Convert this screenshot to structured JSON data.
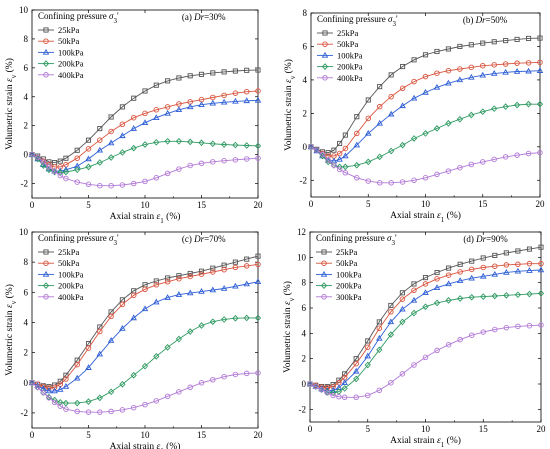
{
  "figure": {
    "series_colors": [
      "#555555",
      "#d9543f",
      "#2f5fd6",
      "#2f9a62",
      "#b27ad6"
    ],
    "marker_shapes": [
      "square",
      "circle",
      "triangle",
      "diamond",
      "circle"
    ],
    "x_ticks": [
      "0",
      "5",
      "10",
      "15",
      "20"
    ]
  },
  "chart_data": [
    {
      "type": "line",
      "panel_label": "(a) Dr=30%",
      "legend_title": "Confining pressure σ3'",
      "xlabel": "Axial strain ε1 (%)",
      "ylabel": "Volumetric strain εv (%)",
      "xlim": [
        0,
        20
      ],
      "ylim": [
        -3,
        10
      ],
      "y_ticks": [
        "-2",
        "0",
        "2",
        "4",
        "6",
        "8",
        "10"
      ],
      "grid": false,
      "legend_position": "top-left",
      "x": [
        0,
        0.5,
        1,
        1.5,
        2,
        2.5,
        3,
        4,
        5,
        6,
        7,
        8,
        9,
        10,
        11,
        12,
        13,
        14,
        15,
        16,
        17,
        18,
        19,
        20
      ],
      "series": [
        {
          "name": "25kPa",
          "values": [
            0,
            -0.1,
            -0.3,
            -0.5,
            -0.55,
            -0.45,
            -0.25,
            0.3,
            1.0,
            1.8,
            2.6,
            3.3,
            3.9,
            4.4,
            4.8,
            5.1,
            5.3,
            5.45,
            5.55,
            5.65,
            5.72,
            5.78,
            5.83,
            5.85
          ]
        },
        {
          "name": "50kPa",
          "values": [
            0,
            -0.2,
            -0.45,
            -0.7,
            -0.85,
            -0.85,
            -0.7,
            -0.25,
            0.4,
            1.0,
            1.6,
            2.1,
            2.55,
            2.85,
            3.1,
            3.3,
            3.5,
            3.65,
            3.8,
            3.95,
            4.1,
            4.25,
            4.35,
            4.4
          ]
        },
        {
          "name": "100kPa",
          "values": [
            0,
            -0.3,
            -0.7,
            -1.0,
            -1.15,
            -1.15,
            -1.05,
            -0.8,
            -0.3,
            0.3,
            0.8,
            1.3,
            1.8,
            2.2,
            2.55,
            2.85,
            3.1,
            3.3,
            3.45,
            3.55,
            3.62,
            3.68,
            3.72,
            3.75
          ]
        },
        {
          "name": "200kPa",
          "values": [
            0,
            -0.3,
            -0.75,
            -1.05,
            -1.2,
            -1.25,
            -1.2,
            -1.05,
            -0.85,
            -0.55,
            -0.2,
            0.15,
            0.45,
            0.7,
            0.85,
            0.92,
            0.92,
            0.88,
            0.82,
            0.75,
            0.7,
            0.66,
            0.63,
            0.6
          ]
        },
        {
          "name": "400kPa",
          "values": [
            0,
            -0.2,
            -0.5,
            -0.85,
            -1.15,
            -1.45,
            -1.65,
            -1.9,
            -2.05,
            -2.15,
            -2.15,
            -2.1,
            -2.0,
            -1.85,
            -1.6,
            -1.3,
            -1.0,
            -0.75,
            -0.6,
            -0.5,
            -0.42,
            -0.36,
            -0.3,
            -0.25
          ]
        }
      ]
    },
    {
      "type": "line",
      "panel_label": "(b) Dr=50%",
      "legend_title": "Confining pressure σ3'",
      "xlabel": "Axial strain ε1 (%)",
      "ylabel": "Volumetric strain εv (%)",
      "xlim": [
        0,
        20
      ],
      "ylim": [
        -3,
        8
      ],
      "y_ticks": [
        "-2",
        "0",
        "2",
        "4",
        "6",
        "8"
      ],
      "grid": false,
      "legend_position": "top-left",
      "x": [
        0,
        0.5,
        1,
        1.5,
        2,
        2.5,
        3,
        4,
        5,
        6,
        7,
        8,
        9,
        10,
        11,
        12,
        13,
        14,
        15,
        16,
        17,
        18,
        19,
        20
      ],
      "series": [
        {
          "name": "25kPa",
          "values": [
            0,
            -0.15,
            -0.3,
            -0.35,
            -0.2,
            0.2,
            0.7,
            1.8,
            2.8,
            3.6,
            4.3,
            4.8,
            5.2,
            5.5,
            5.7,
            5.85,
            6.0,
            6.1,
            6.2,
            6.28,
            6.35,
            6.42,
            6.48,
            6.5
          ]
        },
        {
          "name": "50kPa",
          "values": [
            0,
            -0.2,
            -0.4,
            -0.55,
            -0.55,
            -0.4,
            -0.1,
            0.8,
            1.7,
            2.4,
            3.0,
            3.5,
            3.9,
            4.2,
            4.4,
            4.55,
            4.65,
            4.75,
            4.85,
            4.9,
            4.95,
            5.0,
            5.02,
            5.05
          ]
        },
        {
          "name": "100kPa",
          "values": [
            0,
            -0.25,
            -0.55,
            -0.8,
            -0.85,
            -0.75,
            -0.55,
            0.1,
            0.8,
            1.4,
            1.95,
            2.45,
            2.9,
            3.25,
            3.55,
            3.8,
            4.0,
            4.15,
            4.28,
            4.38,
            4.45,
            4.5,
            4.52,
            4.55
          ]
        },
        {
          "name": "200kPa",
          "values": [
            0,
            -0.2,
            -0.55,
            -0.9,
            -1.1,
            -1.2,
            -1.2,
            -1.1,
            -0.9,
            -0.6,
            -0.25,
            0.1,
            0.5,
            0.8,
            1.1,
            1.4,
            1.65,
            1.9,
            2.1,
            2.28,
            2.4,
            2.5,
            2.55,
            2.55
          ]
        },
        {
          "name": "400kPa",
          "values": [
            0,
            -0.2,
            -0.45,
            -0.8,
            -1.1,
            -1.35,
            -1.55,
            -1.85,
            -2.05,
            -2.15,
            -2.15,
            -2.1,
            -2.0,
            -1.85,
            -1.65,
            -1.45,
            -1.25,
            -1.05,
            -0.9,
            -0.75,
            -0.6,
            -0.5,
            -0.4,
            -0.35
          ]
        }
      ]
    },
    {
      "type": "line",
      "panel_label": "(c) Dr=70%",
      "legend_title": "Confining pressure σ3'",
      "xlabel": "Axial strain ε1 (%)",
      "ylabel": "Volumetric strain εv (%)",
      "xlim": [
        0,
        20
      ],
      "ylim": [
        -3,
        10
      ],
      "y_ticks": [
        "-2",
        "0",
        "2",
        "4",
        "6",
        "8",
        "10"
      ],
      "grid": false,
      "legend_position": "top-left",
      "x": [
        0,
        0.5,
        1,
        1.5,
        2,
        2.5,
        3,
        4,
        5,
        6,
        7,
        8,
        9,
        10,
        11,
        12,
        13,
        14,
        15,
        16,
        17,
        18,
        19,
        20
      ],
      "series": [
        {
          "name": "25kPa",
          "values": [
            0,
            -0.1,
            -0.2,
            -0.25,
            -0.15,
            0.1,
            0.5,
            1.5,
            2.6,
            3.7,
            4.7,
            5.5,
            6.1,
            6.5,
            6.75,
            6.95,
            7.1,
            7.25,
            7.4,
            7.6,
            7.8,
            8.0,
            8.2,
            8.4
          ]
        },
        {
          "name": "50kPa",
          "values": [
            0,
            -0.1,
            -0.25,
            -0.35,
            -0.3,
            -0.1,
            0.25,
            1.2,
            2.3,
            3.4,
            4.4,
            5.2,
            5.8,
            6.2,
            6.5,
            6.7,
            6.9,
            7.05,
            7.2,
            7.35,
            7.5,
            7.65,
            7.75,
            7.85
          ]
        },
        {
          "name": "100kPa",
          "values": [
            0,
            -0.2,
            -0.4,
            -0.55,
            -0.55,
            -0.45,
            -0.25,
            0.3,
            1.0,
            1.9,
            2.8,
            3.6,
            4.3,
            4.9,
            5.35,
            5.65,
            5.85,
            5.95,
            6.05,
            6.15,
            6.25,
            6.4,
            6.55,
            6.7
          ]
        },
        {
          "name": "200kPa",
          "values": [
            0,
            -0.3,
            -0.65,
            -0.95,
            -1.15,
            -1.3,
            -1.35,
            -1.35,
            -1.25,
            -1.0,
            -0.6,
            -0.1,
            0.5,
            1.1,
            1.75,
            2.35,
            2.9,
            3.4,
            3.8,
            4.05,
            4.2,
            4.28,
            4.3,
            4.3
          ]
        },
        {
          "name": "400kPa",
          "values": [
            0,
            -0.3,
            -0.65,
            -1.0,
            -1.3,
            -1.55,
            -1.75,
            -1.9,
            -1.95,
            -1.95,
            -1.9,
            -1.8,
            -1.65,
            -1.45,
            -1.2,
            -0.9,
            -0.6,
            -0.3,
            0.0,
            0.2,
            0.4,
            0.55,
            0.62,
            0.65
          ]
        }
      ]
    },
    {
      "type": "line",
      "panel_label": "(d) Dr=90%",
      "legend_title": "Confining pressure σ3'",
      "xlabel": "Axial strain ε1 (%)",
      "ylabel": "Volumetric strain εv (%)",
      "xlim": [
        0,
        20
      ],
      "ylim": [
        -3,
        12
      ],
      "y_ticks": [
        "-2",
        "0",
        "2",
        "4",
        "6",
        "8",
        "10",
        "12"
      ],
      "grid": false,
      "legend_position": "top-left",
      "x": [
        0,
        0.5,
        1,
        1.5,
        2,
        2.5,
        3,
        4,
        5,
        6,
        7,
        8,
        9,
        10,
        11,
        12,
        13,
        14,
        15,
        16,
        17,
        18,
        19,
        20
      ],
      "series": [
        {
          "name": "25kPa",
          "values": [
            0,
            -0.1,
            -0.2,
            -0.2,
            -0.05,
            0.3,
            0.8,
            2.0,
            3.4,
            4.9,
            6.2,
            7.2,
            7.9,
            8.4,
            8.8,
            9.15,
            9.45,
            9.7,
            9.95,
            10.15,
            10.35,
            10.5,
            10.65,
            10.8
          ]
        },
        {
          "name": "50kPa",
          "values": [
            0,
            -0.1,
            -0.25,
            -0.3,
            -0.2,
            0.1,
            0.5,
            1.6,
            2.9,
            4.4,
            5.7,
            6.7,
            7.4,
            7.9,
            8.3,
            8.6,
            8.85,
            9.05,
            9.2,
            9.3,
            9.4,
            9.45,
            9.5,
            9.5
          ]
        },
        {
          "name": "100kPa",
          "values": [
            0,
            -0.2,
            -0.4,
            -0.55,
            -0.5,
            -0.3,
            0.1,
            1.0,
            2.2,
            3.6,
            4.9,
            5.9,
            6.6,
            7.2,
            7.6,
            7.9,
            8.15,
            8.35,
            8.5,
            8.65,
            8.8,
            8.9,
            8.95,
            9.0
          ]
        },
        {
          "name": "200kPa",
          "values": [
            0,
            -0.2,
            -0.45,
            -0.65,
            -0.7,
            -0.6,
            -0.35,
            0.4,
            1.5,
            2.7,
            3.9,
            4.9,
            5.6,
            6.1,
            6.4,
            6.6,
            6.75,
            6.85,
            6.9,
            6.95,
            7.0,
            7.05,
            7.1,
            7.15
          ]
        },
        {
          "name": "300kPa",
          "values": [
            0,
            -0.2,
            -0.45,
            -0.7,
            -0.9,
            -1.0,
            -1.05,
            -1.05,
            -0.9,
            -0.5,
            0.1,
            0.8,
            1.5,
            2.1,
            2.65,
            3.1,
            3.5,
            3.85,
            4.1,
            4.3,
            4.45,
            4.55,
            4.6,
            4.65
          ]
        }
      ]
    }
  ]
}
